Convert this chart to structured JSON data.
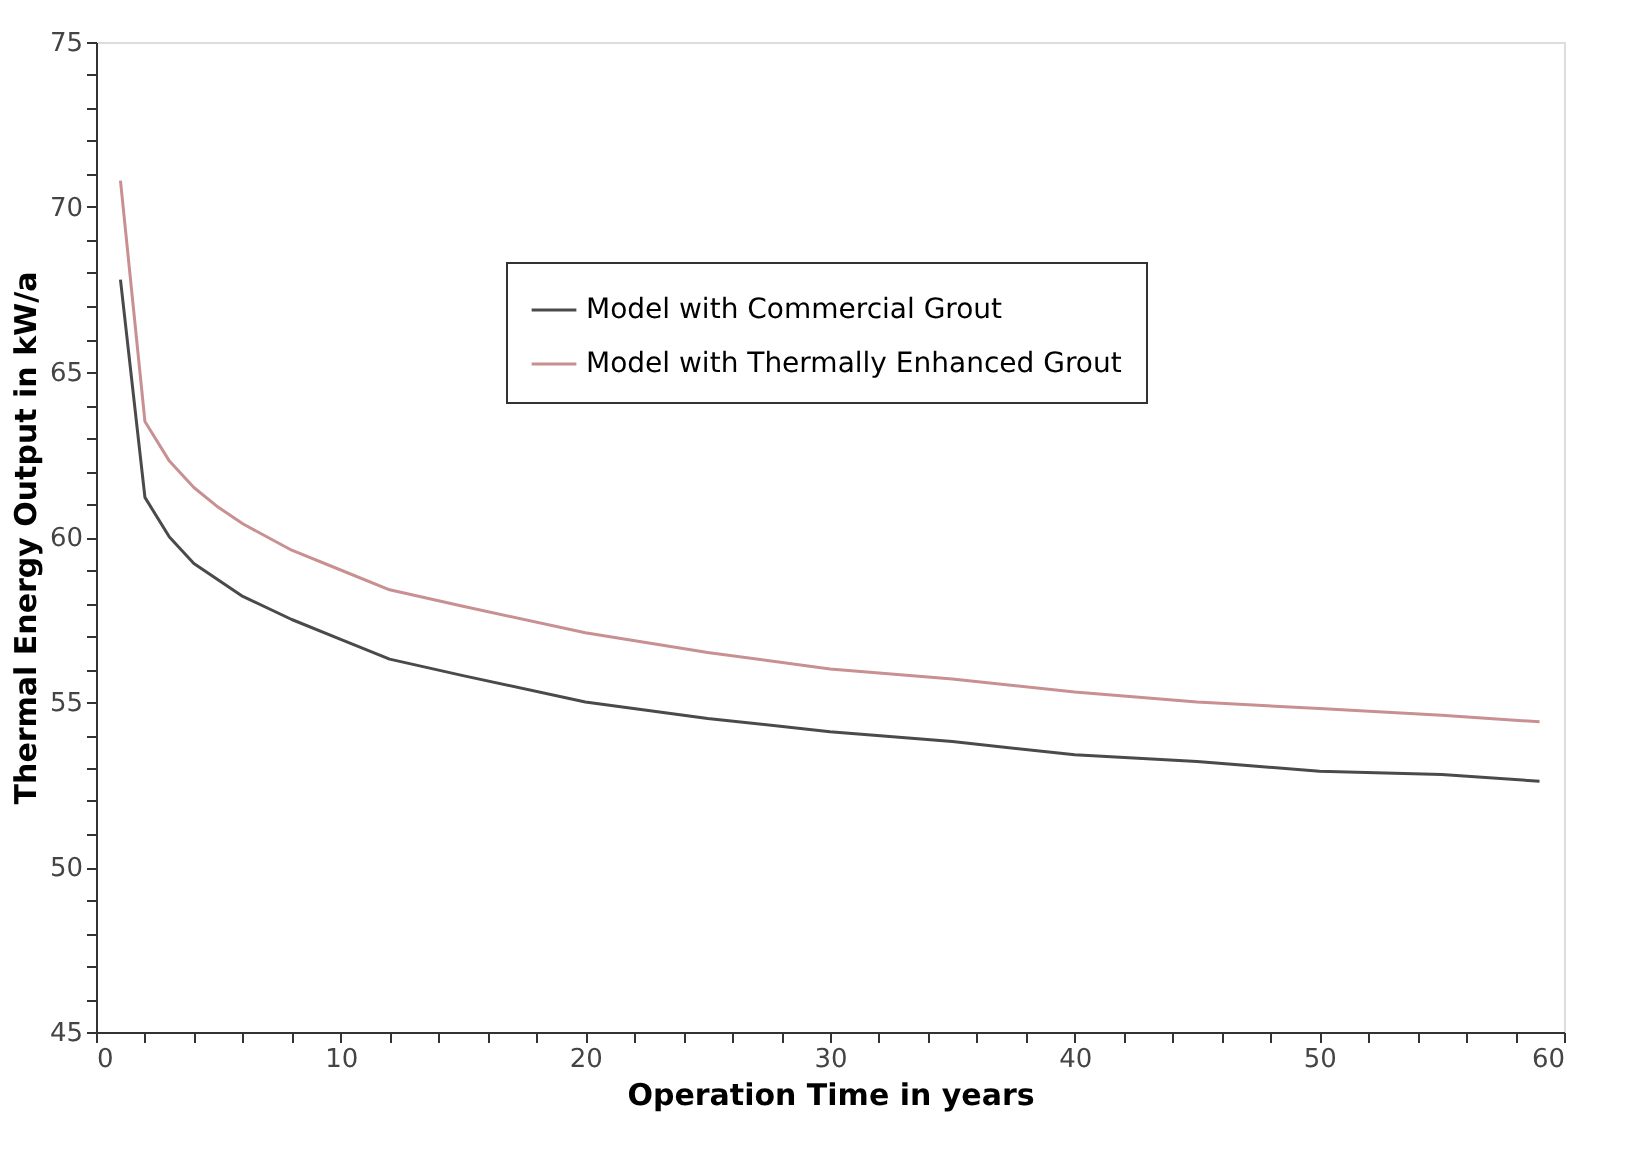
{
  "chart_data": {
    "type": "line",
    "xlabel": "Operation Time in years",
    "ylabel": "Thermal Energy Output in kW/a",
    "x": [
      1,
      2,
      3,
      4,
      5,
      6,
      8,
      10,
      12,
      15,
      20,
      25,
      30,
      35,
      40,
      45,
      50,
      55,
      59
    ],
    "series": [
      {
        "name": "Model with Commercial Grout",
        "color": "#4a4a4a",
        "values": [
          67.8,
          61.2,
          60.0,
          59.2,
          58.7,
          58.2,
          57.5,
          56.9,
          56.3,
          55.8,
          55.0,
          54.5,
          54.1,
          53.8,
          53.4,
          53.2,
          52.9,
          52.8,
          52.6
        ]
      },
      {
        "name": "Model with Thermally Enhanced Grout",
        "color": "#c89090",
        "values": [
          70.8,
          63.5,
          62.3,
          61.5,
          60.9,
          60.4,
          59.6,
          59.0,
          58.4,
          57.9,
          57.1,
          56.5,
          56.0,
          55.7,
          55.3,
          55.0,
          54.8,
          54.6,
          54.4
        ]
      }
    ],
    "xlim": [
      0,
      60
    ],
    "xticks": [
      0,
      {
        "value": 2,
        "label": null
      },
      {
        "value": 4,
        "label": null
      },
      {
        "value": 6,
        "label": null
      },
      {
        "value": 8,
        "label": null
      },
      10,
      {
        "value": 12,
        "label": null
      },
      {
        "value": 14,
        "label": null
      },
      {
        "value": 16,
        "label": null
      },
      {
        "value": 18,
        "label": null
      },
      20,
      {
        "value": 22,
        "label": null
      },
      {
        "value": 24,
        "label": null
      },
      {
        "value": 26,
        "label": null
      },
      {
        "value": 28,
        "label": null
      },
      30,
      {
        "value": 32,
        "label": null
      },
      {
        "value": 34,
        "label": null
      },
      {
        "value": 36,
        "label": null
      },
      {
        "value": 38,
        "label": null
      },
      40,
      {
        "value": 42,
        "label": null
      },
      {
        "value": 44,
        "label": null
      },
      {
        "value": 46,
        "label": null
      },
      {
        "value": 48,
        "label": null
      },
      50,
      {
        "value": 52,
        "label": null
      },
      {
        "value": 54,
        "label": null
      },
      {
        "value": 56,
        "label": null
      },
      {
        "value": 58,
        "label": null
      },
      60
    ],
    "ylim": [
      45,
      75
    ],
    "yticks": [
      45,
      {
        "value": 46,
        "label": null
      },
      {
        "value": 47,
        "label": null
      },
      {
        "value": 48,
        "label": null
      },
      {
        "value": 49,
        "label": null
      },
      50,
      {
        "value": 51,
        "label": null
      },
      {
        "value": 52,
        "label": null
      },
      {
        "value": 53,
        "label": null
      },
      {
        "value": 54,
        "label": null
      },
      55,
      {
        "value": 56,
        "label": null
      },
      {
        "value": 57,
        "label": null
      },
      {
        "value": 58,
        "label": null
      },
      {
        "value": 59,
        "label": null
      },
      60,
      {
        "value": 61,
        "label": null
      },
      {
        "value": 62,
        "label": null
      },
      {
        "value": 63,
        "label": null
      },
      {
        "value": 64,
        "label": null
      },
      65,
      {
        "value": 66,
        "label": null
      },
      {
        "value": 67,
        "label": null
      },
      {
        "value": 68,
        "label": null
      },
      {
        "value": 69,
        "label": null
      },
      70,
      {
        "value": 71,
        "label": null
      },
      {
        "value": 72,
        "label": null
      },
      {
        "value": 73,
        "label": null
      },
      {
        "value": 74,
        "label": null
      },
      75
    ],
    "grid": false,
    "legend": "top"
  }
}
